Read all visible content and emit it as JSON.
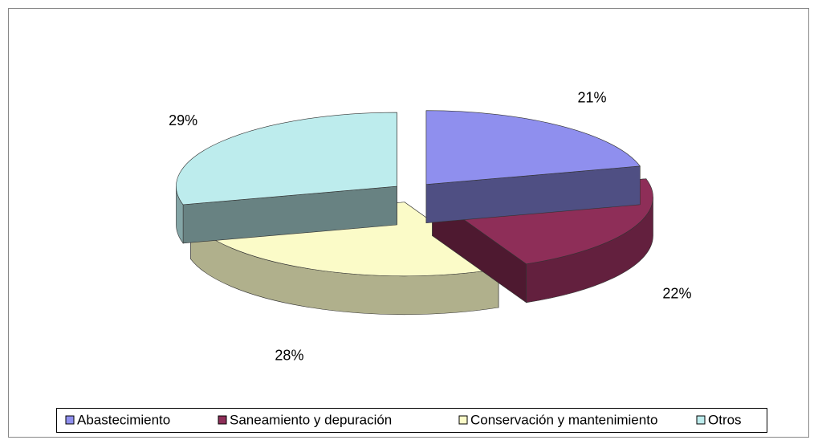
{
  "chart_data": {
    "type": "pie3d",
    "categories": [
      "Abastecimiento",
      "Saneamiento y depuración",
      "Conservación y mantenimiento",
      "Otros"
    ],
    "values": [
      21,
      22,
      28,
      29
    ],
    "value_labels": [
      "21%",
      "22%",
      "28%",
      "29%"
    ],
    "colors": [
      "#8f8fee",
      "#8e2e58",
      "#fbfbc8",
      "#bdeced"
    ],
    "legend": "bottom"
  }
}
